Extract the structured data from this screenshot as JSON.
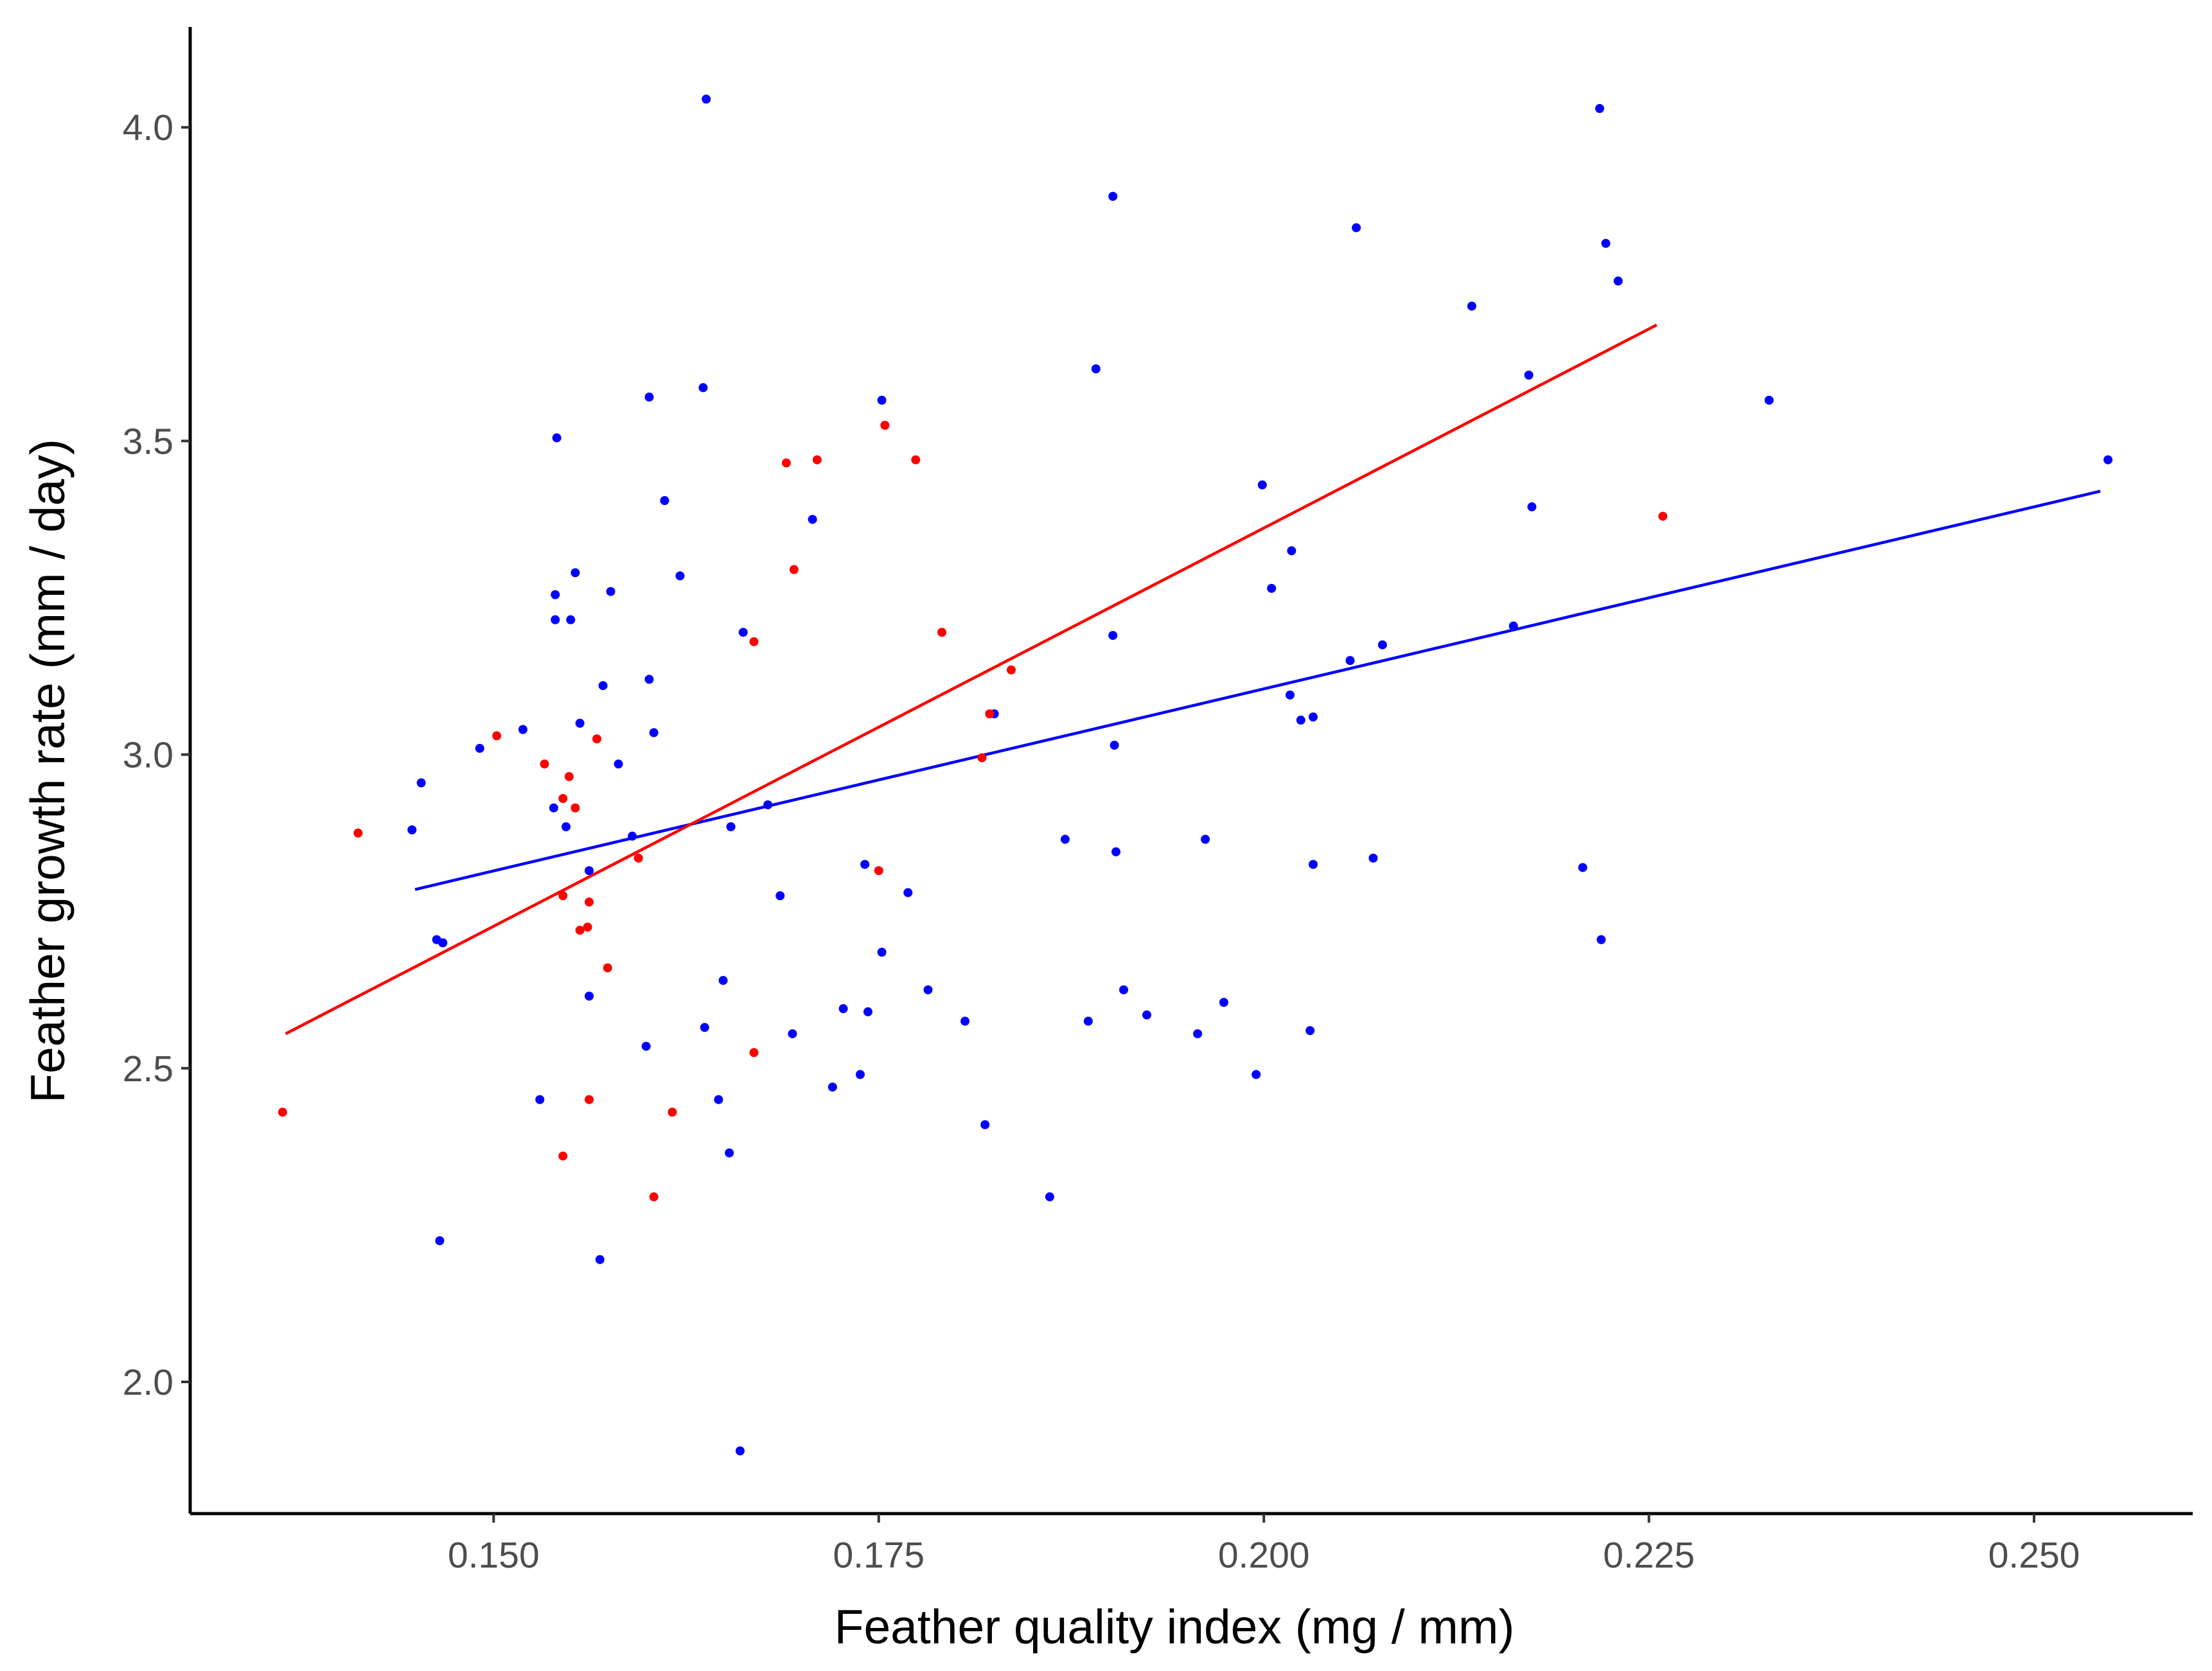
{
  "chart_data": {
    "type": "scatter",
    "title": "",
    "xlabel": "Feather quality index (mg / mm)",
    "ylabel": "Feather growth rate (mm / day)",
    "xlim": [
      0.1303,
      0.2603
    ],
    "ylim": [
      1.79,
      4.16
    ],
    "grid": false,
    "legend": "none",
    "x_ticks": [
      {
        "value": 0.15,
        "label": "0.150"
      },
      {
        "value": 0.175,
        "label": "0.175"
      },
      {
        "value": 0.2,
        "label": "0.200"
      },
      {
        "value": 0.225,
        "label": "0.225"
      },
      {
        "value": 0.25,
        "label": "0.250"
      }
    ],
    "y_ticks": [
      {
        "value": 2.0,
        "label": "2.0"
      },
      {
        "value": 2.5,
        "label": "2.5"
      },
      {
        "value": 3.0,
        "label": "3.0"
      },
      {
        "value": 3.5,
        "label": "3.5"
      },
      {
        "value": 4.0,
        "label": "4.0"
      }
    ],
    "series": [
      {
        "color": "#0000ff",
        "points": [
          [
            0.1447,
            2.88
          ],
          [
            0.1453,
            2.955
          ],
          [
            0.1463,
            2.705
          ],
          [
            0.1467,
            2.7
          ],
          [
            0.1465,
            2.225
          ],
          [
            0.1491,
            3.01
          ],
          [
            0.1519,
            3.04
          ],
          [
            0.153,
            2.45
          ],
          [
            0.1539,
            2.915
          ],
          [
            0.154,
            3.215
          ],
          [
            0.154,
            3.255
          ],
          [
            0.1541,
            3.505
          ],
          [
            0.1547,
            2.885
          ],
          [
            0.155,
            3.215
          ],
          [
            0.1553,
            3.29
          ],
          [
            0.1556,
            3.05
          ],
          [
            0.1562,
            2.815
          ],
          [
            0.1562,
            2.615
          ],
          [
            0.1569,
            2.195
          ],
          [
            0.1571,
            3.11
          ],
          [
            0.1576,
            3.26
          ],
          [
            0.1581,
            2.985
          ],
          [
            0.159,
            2.87
          ],
          [
            0.1599,
            2.535
          ],
          [
            0.1601,
            3.57
          ],
          [
            0.1601,
            3.12
          ],
          [
            0.1604,
            3.035
          ],
          [
            0.1611,
            3.405
          ],
          [
            0.1621,
            3.285
          ],
          [
            0.1636,
            3.585
          ],
          [
            0.1637,
            2.565
          ],
          [
            0.1638,
            4.045
          ],
          [
            0.1646,
            2.45
          ],
          [
            0.1649,
            2.64
          ],
          [
            0.1653,
            2.365
          ],
          [
            0.1654,
            2.885
          ],
          [
            0.166,
            1.89
          ],
          [
            0.1662,
            3.195
          ],
          [
            0.1678,
            2.92
          ],
          [
            0.1686,
            2.775
          ],
          [
            0.1694,
            2.555
          ],
          [
            0.1707,
            3.375
          ],
          [
            0.172,
            2.47
          ],
          [
            0.1727,
            2.595
          ],
          [
            0.1738,
            2.49
          ],
          [
            0.1741,
            2.825
          ],
          [
            0.1743,
            2.59
          ],
          [
            0.1752,
            2.685
          ],
          [
            0.1752,
            3.565
          ],
          [
            0.1769,
            2.78
          ],
          [
            0.1782,
            2.625
          ],
          [
            0.1806,
            2.575
          ],
          [
            0.1819,
            2.41
          ],
          [
            0.1825,
            3.065
          ],
          [
            0.1861,
            2.295
          ],
          [
            0.1871,
            2.865
          ],
          [
            0.1886,
            2.575
          ],
          [
            0.1891,
            3.615
          ],
          [
            0.1902,
            3.89
          ],
          [
            0.1902,
            3.19
          ],
          [
            0.1903,
            3.015
          ],
          [
            0.1904,
            2.845
          ],
          [
            0.1909,
            2.625
          ],
          [
            0.1924,
            2.585
          ],
          [
            0.1957,
            2.555
          ],
          [
            0.1962,
            2.865
          ],
          [
            0.1974,
            2.605
          ],
          [
            0.1995,
            2.49
          ],
          [
            0.1999,
            3.43
          ],
          [
            0.2005,
            3.265
          ],
          [
            0.2017,
            3.095
          ],
          [
            0.2018,
            3.325
          ],
          [
            0.2024,
            3.055
          ],
          [
            0.203,
            2.56
          ],
          [
            0.2032,
            3.06
          ],
          [
            0.2032,
            2.825
          ],
          [
            0.2056,
            3.15
          ],
          [
            0.206,
            3.84
          ],
          [
            0.2071,
            2.835
          ],
          [
            0.2077,
            3.175
          ],
          [
            0.2135,
            3.715
          ],
          [
            0.2162,
            3.205
          ],
          [
            0.2172,
            3.605
          ],
          [
            0.2174,
            3.395
          ],
          [
            0.2207,
            2.82
          ],
          [
            0.2218,
            4.03
          ],
          [
            0.2219,
            2.705
          ],
          [
            0.2222,
            3.815
          ],
          [
            0.223,
            3.755
          ],
          [
            0.2328,
            3.565
          ],
          [
            0.2548,
            3.47
          ]
        ],
        "fit": {
          "x": [
            0.1449,
            0.2543
          ],
          "y": [
            2.785,
            3.42
          ]
        }
      },
      {
        "color": "#ff0000",
        "points": [
          [
            0.1363,
            2.43
          ],
          [
            0.1412,
            2.875
          ],
          [
            0.1502,
            3.03
          ],
          [
            0.1533,
            2.985
          ],
          [
            0.1545,
            2.93
          ],
          [
            0.1545,
            2.775
          ],
          [
            0.1545,
            2.36
          ],
          [
            0.1549,
            2.965
          ],
          [
            0.1553,
            2.915
          ],
          [
            0.1556,
            2.72
          ],
          [
            0.1561,
            2.725
          ],
          [
            0.1562,
            2.765
          ],
          [
            0.1562,
            2.45
          ],
          [
            0.1567,
            3.025
          ],
          [
            0.1574,
            2.66
          ],
          [
            0.1594,
            2.835
          ],
          [
            0.1604,
            2.295
          ],
          [
            0.1616,
            2.43
          ],
          [
            0.1669,
            3.18
          ],
          [
            0.1669,
            2.525
          ],
          [
            0.169,
            3.465
          ],
          [
            0.1695,
            3.295
          ],
          [
            0.171,
            3.47
          ],
          [
            0.175,
            2.815
          ],
          [
            0.1754,
            3.525
          ],
          [
            0.1774,
            3.47
          ],
          [
            0.1791,
            3.195
          ],
          [
            0.1817,
            2.995
          ],
          [
            0.1822,
            3.065
          ],
          [
            0.1836,
            3.135
          ],
          [
            0.2259,
            3.38
          ]
        ],
        "fit": {
          "x": [
            0.1365,
            0.2255
          ],
          "y": [
            2.555,
            3.685
          ]
        }
      }
    ]
  }
}
